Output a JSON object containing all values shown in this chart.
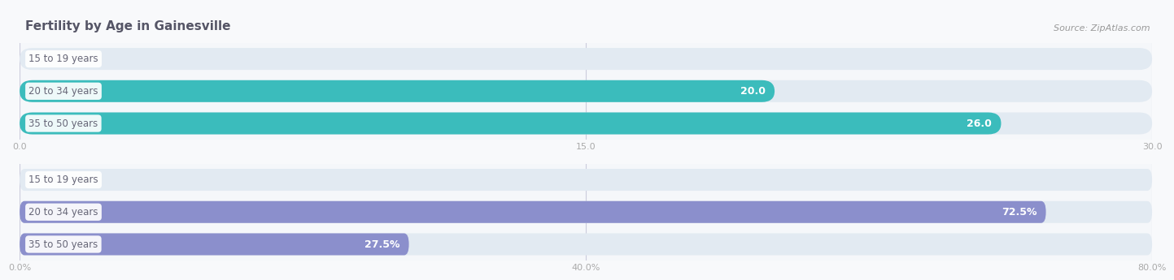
{
  "title": "Fertility by Age in Gainesville",
  "source": "Source: ZipAtlas.com",
  "top_chart": {
    "categories": [
      "15 to 19 years",
      "20 to 34 years",
      "35 to 50 years"
    ],
    "values": [
      0.0,
      20.0,
      26.0
    ],
    "xlim": [
      0,
      30
    ],
    "xticks": [
      0.0,
      15.0,
      30.0
    ],
    "bar_color": "#3bbcbc",
    "bar_bg_color": "#e2eaf2",
    "bg_color": "#f5f7fa"
  },
  "bottom_chart": {
    "categories": [
      "15 to 19 years",
      "20 to 34 years",
      "35 to 50 years"
    ],
    "values": [
      0.0,
      72.5,
      27.5
    ],
    "xlim": [
      0,
      80
    ],
    "xticks": [
      0.0,
      40.0,
      80.0
    ],
    "bar_color": "#8b8fcc",
    "bar_bg_color": "#e2eaf2",
    "bg_color": "#f5f7fa"
  },
  "title_color": "#555566",
  "source_color": "#999999",
  "label_color": "#666677",
  "tick_color": "#aaaaaa",
  "grid_color": "#ccccdd",
  "bg_color": "#f8f9fb",
  "value_color_inside": "#ffffff",
  "value_color_outside": "#aaaaaa"
}
